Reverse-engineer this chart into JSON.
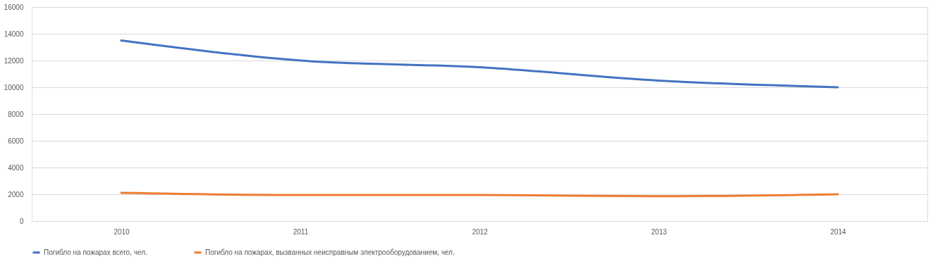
{
  "chart_data": {
    "type": "line",
    "categories": [
      "2010",
      "2011",
      "2012",
      "2013",
      "2014"
    ],
    "series": [
      {
        "name": "Погибло на пожарах всего, чел.",
        "color": "#4472c4",
        "values": [
          13500,
          12000,
          11500,
          10500,
          10000
        ]
      },
      {
        "name": "Погибло на пожарах, вызванных неисправным электрооборудованием, чел.",
        "color": "#ed7d31",
        "values": [
          2100,
          1950,
          1950,
          1850,
          2000
        ]
      }
    ],
    "ylim": [
      0,
      16000
    ],
    "yticks": [
      0,
      2000,
      4000,
      6000,
      8000,
      10000,
      12000,
      14000,
      16000
    ],
    "grid": "y",
    "legend": "bottom",
    "marker": "none",
    "line_style": "solid"
  }
}
